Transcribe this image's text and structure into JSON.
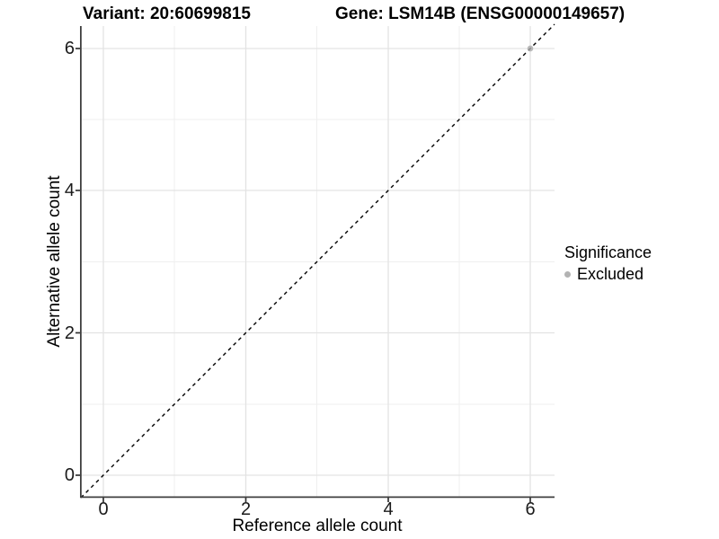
{
  "chart_data": {
    "type": "scatter",
    "title_left": "Variant: 20:60699815",
    "title_right": "Gene: LSM14B (ENSG00000149657)",
    "xlabel": "Reference allele count",
    "ylabel": "Alternative allele count",
    "x_tick_labels": [
      "0",
      "2",
      "4",
      "6"
    ],
    "y_tick_labels": [
      "0",
      "2",
      "4",
      "6"
    ],
    "xlim": [
      -0.32,
      6.35
    ],
    "ylim": [
      -0.3,
      6.32
    ],
    "grid": "major and minor gridlines, light gray on white panel",
    "legend_position": "right",
    "legend": {
      "title": "Significance",
      "entries": [
        {
          "label": "Excluded",
          "marker": "circle",
          "color": "#b3b3b3"
        }
      ]
    },
    "reference_line": {
      "type": "identity y = x",
      "style": "dashed",
      "color": "#000000"
    },
    "series": [
      {
        "name": "Excluded",
        "color": "#aaaaaa",
        "points": [
          {
            "x": 6,
            "y": 6
          }
        ]
      }
    ],
    "colors": {
      "background": "#ffffff",
      "grid_major": "#e3e3e3",
      "grid_minor": "#efefef",
      "axis_line": "#404040",
      "tick_mark": "#333333",
      "excluded": "#b3b3b3"
    }
  }
}
